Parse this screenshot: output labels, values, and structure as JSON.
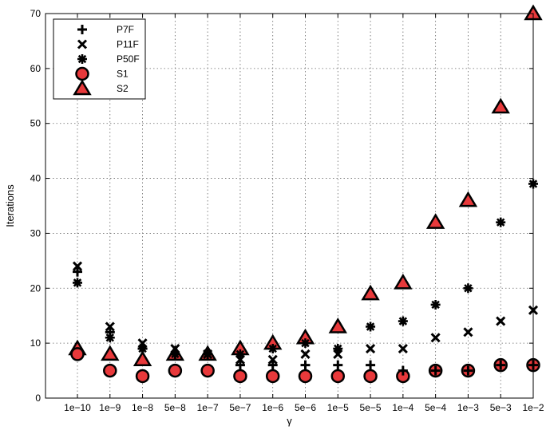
{
  "chart_data": {
    "type": "scatter",
    "title": "",
    "xlabel": "γ",
    "ylabel": "Iterations",
    "categories": [
      "1e−10",
      "1e−9",
      "1e−8",
      "5e−8",
      "1e−7",
      "5e−7",
      "1e−6",
      "5e−6",
      "1e−5",
      "5e−5",
      "1e−4",
      "5e−4",
      "1e−3",
      "5e−3",
      "1e−2"
    ],
    "ylim": [
      0,
      70
    ],
    "yticks": [
      0,
      10,
      20,
      30,
      40,
      50,
      60,
      70
    ],
    "grid": true,
    "legend_position": "top-left",
    "series": [
      {
        "name": "P7F",
        "marker": "plus",
        "values": [
          23,
          12,
          9,
          8,
          8,
          6,
          6,
          6,
          6,
          6,
          5,
          5,
          5,
          6,
          6
        ]
      },
      {
        "name": "P11F",
        "marker": "x",
        "values": [
          24,
          13,
          10,
          9,
          8,
          7,
          7,
          8,
          8,
          9,
          9,
          11,
          12,
          14,
          16
        ]
      },
      {
        "name": "P50F",
        "marker": "asterisk",
        "values": [
          21,
          11,
          9,
          8,
          8,
          8,
          9,
          10,
          9,
          13,
          14,
          17,
          20,
          32,
          39
        ]
      },
      {
        "name": "S1",
        "marker": "circle",
        "values": [
          8,
          5,
          4,
          5,
          5,
          4,
          4,
          4,
          4,
          4,
          4,
          5,
          5,
          6,
          6
        ]
      },
      {
        "name": "S2",
        "marker": "triangle",
        "values": [
          9,
          8,
          7,
          8,
          8,
          9,
          10,
          11,
          13,
          19,
          21,
          32,
          36,
          53,
          70
        ]
      }
    ],
    "colors": {
      "marker_fill": "#e8393b",
      "marker_edge": "#000000",
      "grid": "#666666"
    }
  }
}
